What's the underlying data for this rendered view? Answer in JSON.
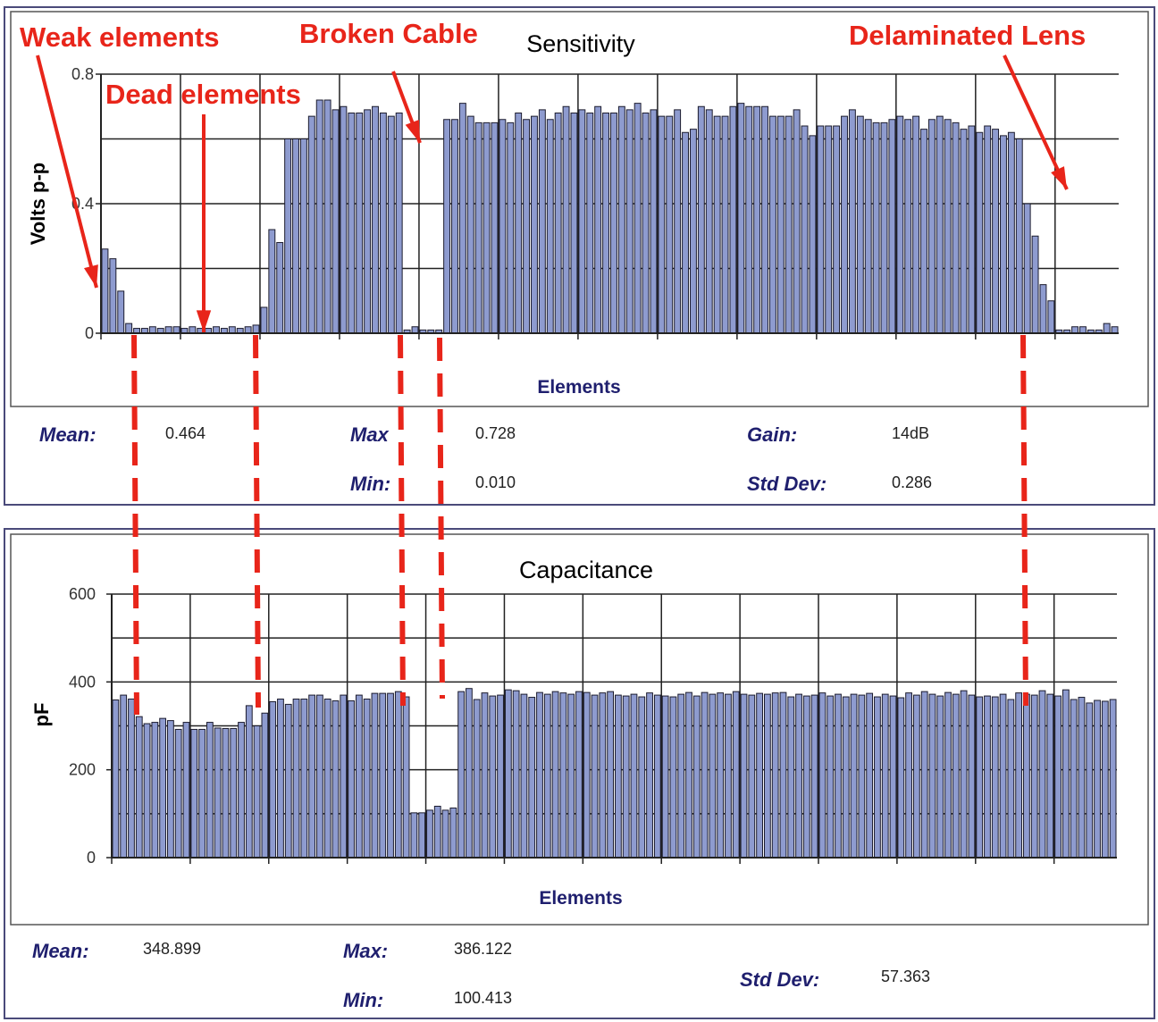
{
  "annotations": {
    "weak": "Weak elements",
    "dead": "Dead elements",
    "broken": "Broken Cable",
    "delaminated": "Delaminated Lens"
  },
  "colors": {
    "bar": "#8e9bcf",
    "annotation": "#e8251a",
    "label": "#1f1f6e"
  },
  "stats_sensitivity": {
    "mean_label": "Mean:",
    "mean": "0.464",
    "max_label": "Max",
    "max": "0.728",
    "min_label": "Min:",
    "min": "0.010",
    "gain_label": "Gain:",
    "gain": "14dB",
    "std_label": "Std Dev:",
    "std": "0.286"
  },
  "stats_capacitance": {
    "mean_label": "Mean:",
    "mean": "348.899",
    "max_label": "Max:",
    "max": "386.122",
    "min_label": "Min:",
    "min": "100.413",
    "std_label": "Std Dev:",
    "std": "57.363"
  },
  "chart_data": [
    {
      "type": "bar",
      "title": "Sensitivity",
      "xlabel": "Elements",
      "ylabel": "Volts p-p",
      "ylim": [
        0,
        0.8
      ],
      "yticks": [
        "0",
        "0.4",
        "0.8"
      ],
      "grid": true,
      "values": [
        0.26,
        0.23,
        0.13,
        0.03,
        0.015,
        0.015,
        0.02,
        0.015,
        0.02,
        0.02,
        0.015,
        0.02,
        0.015,
        0.015,
        0.02,
        0.015,
        0.02,
        0.015,
        0.02,
        0.025,
        0.08,
        0.32,
        0.28,
        0.6,
        0.6,
        0.6,
        0.67,
        0.72,
        0.72,
        0.69,
        0.7,
        0.68,
        0.68,
        0.69,
        0.7,
        0.68,
        0.67,
        0.68,
        0.01,
        0.02,
        0.01,
        0.01,
        0.01,
        0.66,
        0.66,
        0.71,
        0.67,
        0.65,
        0.65,
        0.65,
        0.66,
        0.65,
        0.68,
        0.66,
        0.67,
        0.69,
        0.66,
        0.68,
        0.7,
        0.68,
        0.69,
        0.68,
        0.7,
        0.68,
        0.68,
        0.7,
        0.69,
        0.71,
        0.68,
        0.69,
        0.67,
        0.67,
        0.69,
        0.62,
        0.63,
        0.7,
        0.69,
        0.67,
        0.67,
        0.7,
        0.71,
        0.7,
        0.7,
        0.7,
        0.67,
        0.67,
        0.67,
        0.69,
        0.64,
        0.61,
        0.64,
        0.64,
        0.64,
        0.67,
        0.69,
        0.67,
        0.66,
        0.65,
        0.65,
        0.66,
        0.67,
        0.66,
        0.67,
        0.63,
        0.66,
        0.67,
        0.66,
        0.65,
        0.63,
        0.64,
        0.62,
        0.64,
        0.63,
        0.61,
        0.62,
        0.6,
        0.4,
        0.3,
        0.15,
        0.1,
        0.01,
        0.01,
        0.02,
        0.02,
        0.01,
        0.01,
        0.03,
        0.02
      ]
    },
    {
      "type": "bar",
      "title": "Capacitance",
      "xlabel": "Elements",
      "ylabel": "pF",
      "ylim": [
        0,
        600
      ],
      "yticks": [
        "0",
        "200",
        "400",
        "600"
      ],
      "grid": true,
      "values": [
        359,
        370,
        361,
        321,
        305,
        308,
        317,
        312,
        292,
        308,
        292,
        292,
        308,
        295,
        294,
        294,
        308,
        346,
        300,
        329,
        355,
        361,
        349,
        361,
        361,
        370,
        370,
        361,
        357,
        370,
        357,
        370,
        361,
        374,
        374,
        374,
        378,
        366,
        102,
        102,
        108,
        117,
        108,
        113,
        378,
        385,
        360,
        375,
        368,
        370,
        382,
        380,
        372,
        365,
        376,
        372,
        378,
        375,
        372,
        378,
        376,
        370,
        375,
        378,
        370,
        368,
        372,
        366,
        375,
        370,
        368,
        366,
        372,
        376,
        368,
        376,
        372,
        375,
        372,
        378,
        372,
        370,
        374,
        372,
        375,
        376,
        366,
        372,
        368,
        370,
        375,
        368,
        372,
        366,
        372,
        370,
        374,
        366,
        372,
        368,
        364,
        375,
        370,
        378,
        372,
        368,
        376,
        372,
        380,
        370,
        366,
        368,
        366,
        372,
        360,
        375,
        372,
        370,
        380,
        372,
        368,
        382,
        360,
        365,
        352,
        358,
        356,
        360
      ]
    }
  ]
}
